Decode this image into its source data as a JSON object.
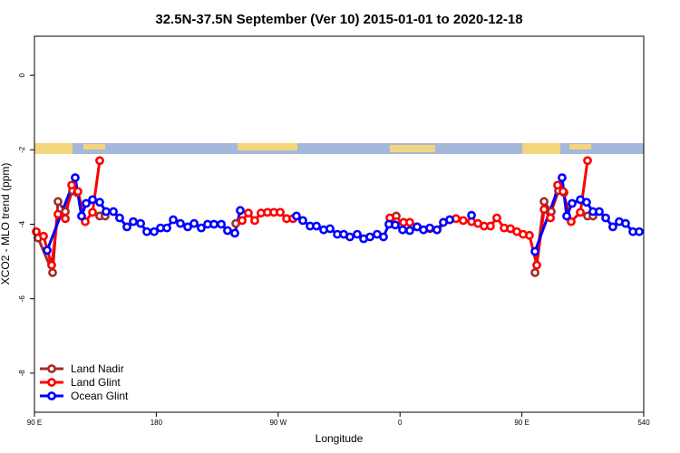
{
  "chart_data": {
    "type": "line",
    "title": "32.5N-37.5N September (Ver 10)   2015-01-01 to 2020-12-18",
    "xlabel": "Longitude",
    "ylabel": "XCO2 - MLO trend (ppm)",
    "xlim": [
      90,
      540
    ],
    "ylim": [
      -9.05,
      1.05
    ],
    "xticks": [
      {
        "value": 90,
        "label": "90 E"
      },
      180,
      {
        "value": 270,
        "label": "90 W"
      },
      {
        "value": 360,
        "label": "0"
      },
      {
        "value": 450,
        "label": "90 E"
      },
      540
    ],
    "yticks": [
      0,
      -2,
      -4,
      -6,
      -8
    ],
    "legend": "bottom-left",
    "series": [
      {
        "name": "Land Nadir",
        "color": "#a52a2a",
        "x": [
          92.7,
          103.4,
          107.4,
          112.8,
          118.1,
          121.5,
          null,
          138.2,
          142.2,
          null,
          238.7,
          null,
          357.2,
          null,
          459.7,
          466.4,
          471.7,
          477.1,
          481.1,
          null,
          498.5,
          502.5
        ],
        "values": [
          -4.37,
          -5.3,
          -3.39,
          -3.66,
          -3.1,
          -3.15,
          null,
          -3.78,
          -3.78,
          null,
          -3.98,
          null,
          -3.78,
          null,
          -5.3,
          -3.39,
          -3.66,
          -3.1,
          -3.15,
          null,
          -3.78,
          -3.78
        ]
      },
      {
        "name": "Land Glint",
        "color": "#ff0000",
        "x": [
          91.3,
          96.7,
          102.7,
          107.4,
          112.8,
          117.5,
          122.1,
          127.5,
          132.9,
          138.2,
          null,
          243.4,
          248.0,
          252.7,
          257.4,
          262.1,
          266.8,
          271.5,
          276.2,
          280.9,
          null,
          352.5,
          357.2,
          362.6,
          367.2,
          372.6,
          382.0,
          387.3,
          396.7,
          401.4,
          406.7,
          412.8,
          417.5,
          422.2,
          426.8,
          431.5,
          436.9,
          441.6,
          446.3,
          450.9,
          455.6,
          461.0,
          466.4,
          471.1,
          476.4,
          480.4,
          486.4,
          493.2,
          498.5
        ],
        "values": [
          -4.2,
          -4.32,
          -5.1,
          -3.73,
          -3.85,
          -2.95,
          -3.12,
          -3.93,
          -3.68,
          -2.29,
          null,
          -3.9,
          -3.7,
          -3.9,
          -3.7,
          -3.68,
          -3.68,
          -3.68,
          -3.85,
          -3.85,
          null,
          -3.83,
          -3.93,
          -3.95,
          -3.95,
          -4.07,
          -4.12,
          -4.15,
          -3.88,
          -3.85,
          -3.9,
          -3.93,
          -3.98,
          -4.05,
          -4.05,
          -3.83,
          -4.1,
          -4.12,
          -4.2,
          -4.27,
          -4.3,
          -5.1,
          -3.6,
          -3.83,
          -2.95,
          -3.12,
          -3.93,
          -3.68,
          -2.29
        ]
      },
      {
        "name": "Ocean Glint",
        "color": "#0000ff",
        "x": [
          99.4,
          120.1,
          124.8,
          128.2,
          132.9,
          138.2,
          142.9,
          148.3,
          152.9,
          158.3,
          163.0,
          168.4,
          173.0,
          178.4,
          183.1,
          187.8,
          192.5,
          197.8,
          203.2,
          207.9,
          213.2,
          217.9,
          222.6,
          228.0,
          232.6,
          238.0,
          242.0,
          null,
          283.5,
          288.2,
          293.6,
          298.3,
          303.6,
          308.3,
          313.7,
          318.4,
          323.0,
          328.4,
          333.1,
          337.8,
          343.1,
          347.8,
          351.8,
          356.5,
          361.9,
          367.2,
          372.6,
          377.3,
          382.0,
          387.3,
          392.0,
          396.7,
          null,
          412.8,
          null,
          459.7,
          479.7,
          483.1,
          487.1,
          493.2,
          497.8,
          502.5,
          507.2,
          511.9,
          517.2,
          521.9,
          526.6,
          532.0,
          536.7
        ],
        "values": [
          -4.7,
          -2.75,
          -3.78,
          -3.44,
          -3.34,
          -3.41,
          -3.66,
          -3.66,
          -3.83,
          -4.07,
          -3.93,
          -3.98,
          -4.2,
          -4.2,
          -4.1,
          -4.1,
          -3.88,
          -3.98,
          -4.07,
          -3.98,
          -4.1,
          -4.0,
          -4.0,
          -4.0,
          -4.17,
          -4.24,
          -3.63,
          null,
          -3.78,
          -3.9,
          -4.05,
          -4.05,
          -4.15,
          -4.12,
          -4.27,
          -4.27,
          -4.34,
          -4.27,
          -4.39,
          -4.34,
          -4.27,
          -4.34,
          -4.0,
          -4.02,
          -4.15,
          -4.17,
          -4.07,
          -4.15,
          -4.1,
          -4.15,
          -3.95,
          -3.88,
          null,
          -3.76,
          null,
          -4.73,
          -2.75,
          -3.78,
          -3.44,
          -3.34,
          -3.41,
          -3.66,
          -3.66,
          -3.83,
          -4.07,
          -3.93,
          -3.98,
          -4.2,
          -4.2
        ]
      }
    ]
  }
}
